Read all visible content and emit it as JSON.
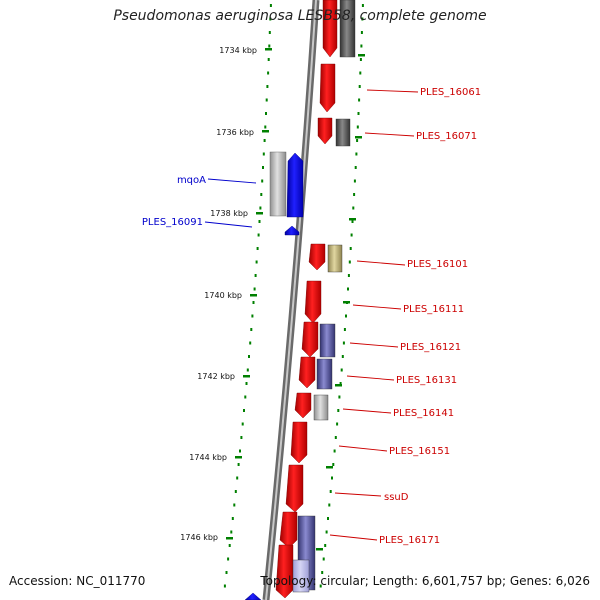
{
  "title": "Pseudomonas aeruginosa LESB58, complete genome",
  "footer": {
    "accession": "Accession: NC_011770",
    "summary": "Topology: circular; Length: 6,601,757 bp; Genes: 6,026"
  },
  "colors": {
    "forward_gene": "#ff0000",
    "reverse_gene": "#0000ff",
    "feature_gray": "#b3b3b3",
    "feature_dark": "#555555",
    "feature_purple": "#55559a",
    "feature_olive": "#b5a96a",
    "ruler": "#008000",
    "backbone": "#808080"
  },
  "ruler": {
    "kbp_labels": [
      "1734 kbp",
      "1736 kbp",
      "1738 kbp",
      "1740 kbp",
      "1742 kbp",
      "1744 kbp",
      "1746 kbp"
    ]
  },
  "gene_labels": [
    {
      "text": "PLES_16061",
      "side": "right",
      "color": "#cc0000"
    },
    {
      "text": "PLES_16071",
      "side": "right",
      "color": "#cc0000"
    },
    {
      "text": "mqoA",
      "side": "left",
      "color": "#0000cc"
    },
    {
      "text": "PLES_16091",
      "side": "left",
      "color": "#0000cc"
    },
    {
      "text": "PLES_16101",
      "side": "right",
      "color": "#cc0000"
    },
    {
      "text": "PLES_16111",
      "side": "right",
      "color": "#cc0000"
    },
    {
      "text": "PLES_16121",
      "side": "right",
      "color": "#cc0000"
    },
    {
      "text": "PLES_16131",
      "side": "right",
      "color": "#cc0000"
    },
    {
      "text": "PLES_16141",
      "side": "right",
      "color": "#cc0000"
    },
    {
      "text": "PLES_16151",
      "side": "right",
      "color": "#cc0000"
    },
    {
      "text": "ssuD",
      "side": "right",
      "color": "#cc0000"
    },
    {
      "text": "PLES_16171",
      "side": "right",
      "color": "#cc0000"
    }
  ]
}
